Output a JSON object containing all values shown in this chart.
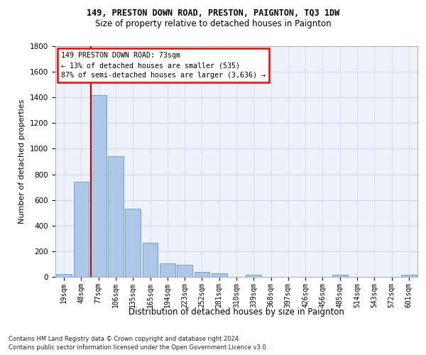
{
  "title1": "149, PRESTON DOWN ROAD, PRESTON, PAIGNTON, TQ3 1DW",
  "title2": "Size of property relative to detached houses in Paignton",
  "xlabel": "Distribution of detached houses by size in Paignton",
  "ylabel": "Number of detached properties",
  "footer1": "Contains HM Land Registry data © Crown copyright and database right 2024.",
  "footer2": "Contains public sector information licensed under the Open Government Licence v3.0.",
  "annotation_line1": "149 PRESTON DOWN ROAD: 73sqm",
  "annotation_line2": "← 13% of detached houses are smaller (535)",
  "annotation_line3": "87% of semi-detached houses are larger (3,636) →",
  "bar_categories": [
    "19sqm",
    "48sqm",
    "77sqm",
    "106sqm",
    "135sqm",
    "165sqm",
    "194sqm",
    "223sqm",
    "252sqm",
    "281sqm",
    "310sqm",
    "339sqm",
    "368sqm",
    "397sqm",
    "426sqm",
    "456sqm",
    "485sqm",
    "514sqm",
    "543sqm",
    "572sqm",
    "601sqm"
  ],
  "bar_values": [
    22,
    740,
    1420,
    940,
    530,
    265,
    105,
    95,
    38,
    28,
    0,
    18,
    0,
    0,
    0,
    0,
    18,
    0,
    0,
    0,
    18
  ],
  "bar_color": "#aec6e8",
  "bar_edge_color": "#5b9bd5",
  "highlight_color": "#cc0000",
  "ylim": [
    0,
    1800
  ],
  "yticks": [
    0,
    200,
    400,
    600,
    800,
    1000,
    1200,
    1400,
    1600,
    1800
  ],
  "grid_color": "#d0d8e8",
  "plot_bg_color": "#edf2f9",
  "title1_fontsize": 8.5,
  "title2_fontsize": 8.5,
  "ylabel_fontsize": 8,
  "xlabel_fontsize": 8.5,
  "tick_fontsize": 7,
  "footer_fontsize": 6
}
